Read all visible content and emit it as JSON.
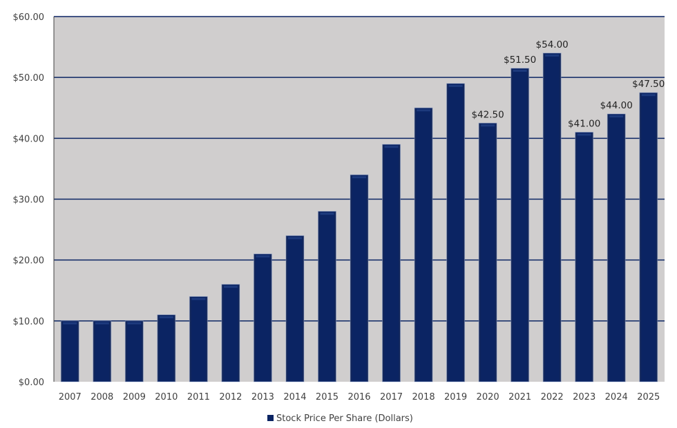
{
  "chart_data": {
    "type": "bar",
    "title": "",
    "xlabel": "",
    "ylabel": "",
    "ylim": [
      0,
      60
    ],
    "yticks": [
      "$0.00",
      "$10.00",
      "$20.00",
      "$30.00",
      "$40.00",
      "$50.00",
      "$60.00"
    ],
    "grid": true,
    "legend_position": "bottom",
    "categories": [
      "2007",
      "2008",
      "2009",
      "2010",
      "2011",
      "2012",
      "2013",
      "2014",
      "2015",
      "2016",
      "2017",
      "2018",
      "2019",
      "2020",
      "2021",
      "2022",
      "2023",
      "2024",
      "2025"
    ],
    "series": [
      {
        "name": "Stock Price Per Share (Dollars)",
        "color": "#0b2463",
        "values": [
          10,
          10,
          10,
          11,
          14,
          16,
          21,
          24,
          28,
          34,
          39,
          45,
          49,
          42.5,
          51.5,
          54,
          41,
          44,
          47.5
        ]
      }
    ],
    "data_labels": {
      "2020": "$42.50",
      "2021": "$51.50",
      "2022": "$54.00",
      "2023": "$41.00",
      "2024": "$44.00",
      "2025": "$47.50"
    },
    "colors": {
      "plot_background": "#d0cece",
      "gridline": "#0b2463"
    }
  }
}
